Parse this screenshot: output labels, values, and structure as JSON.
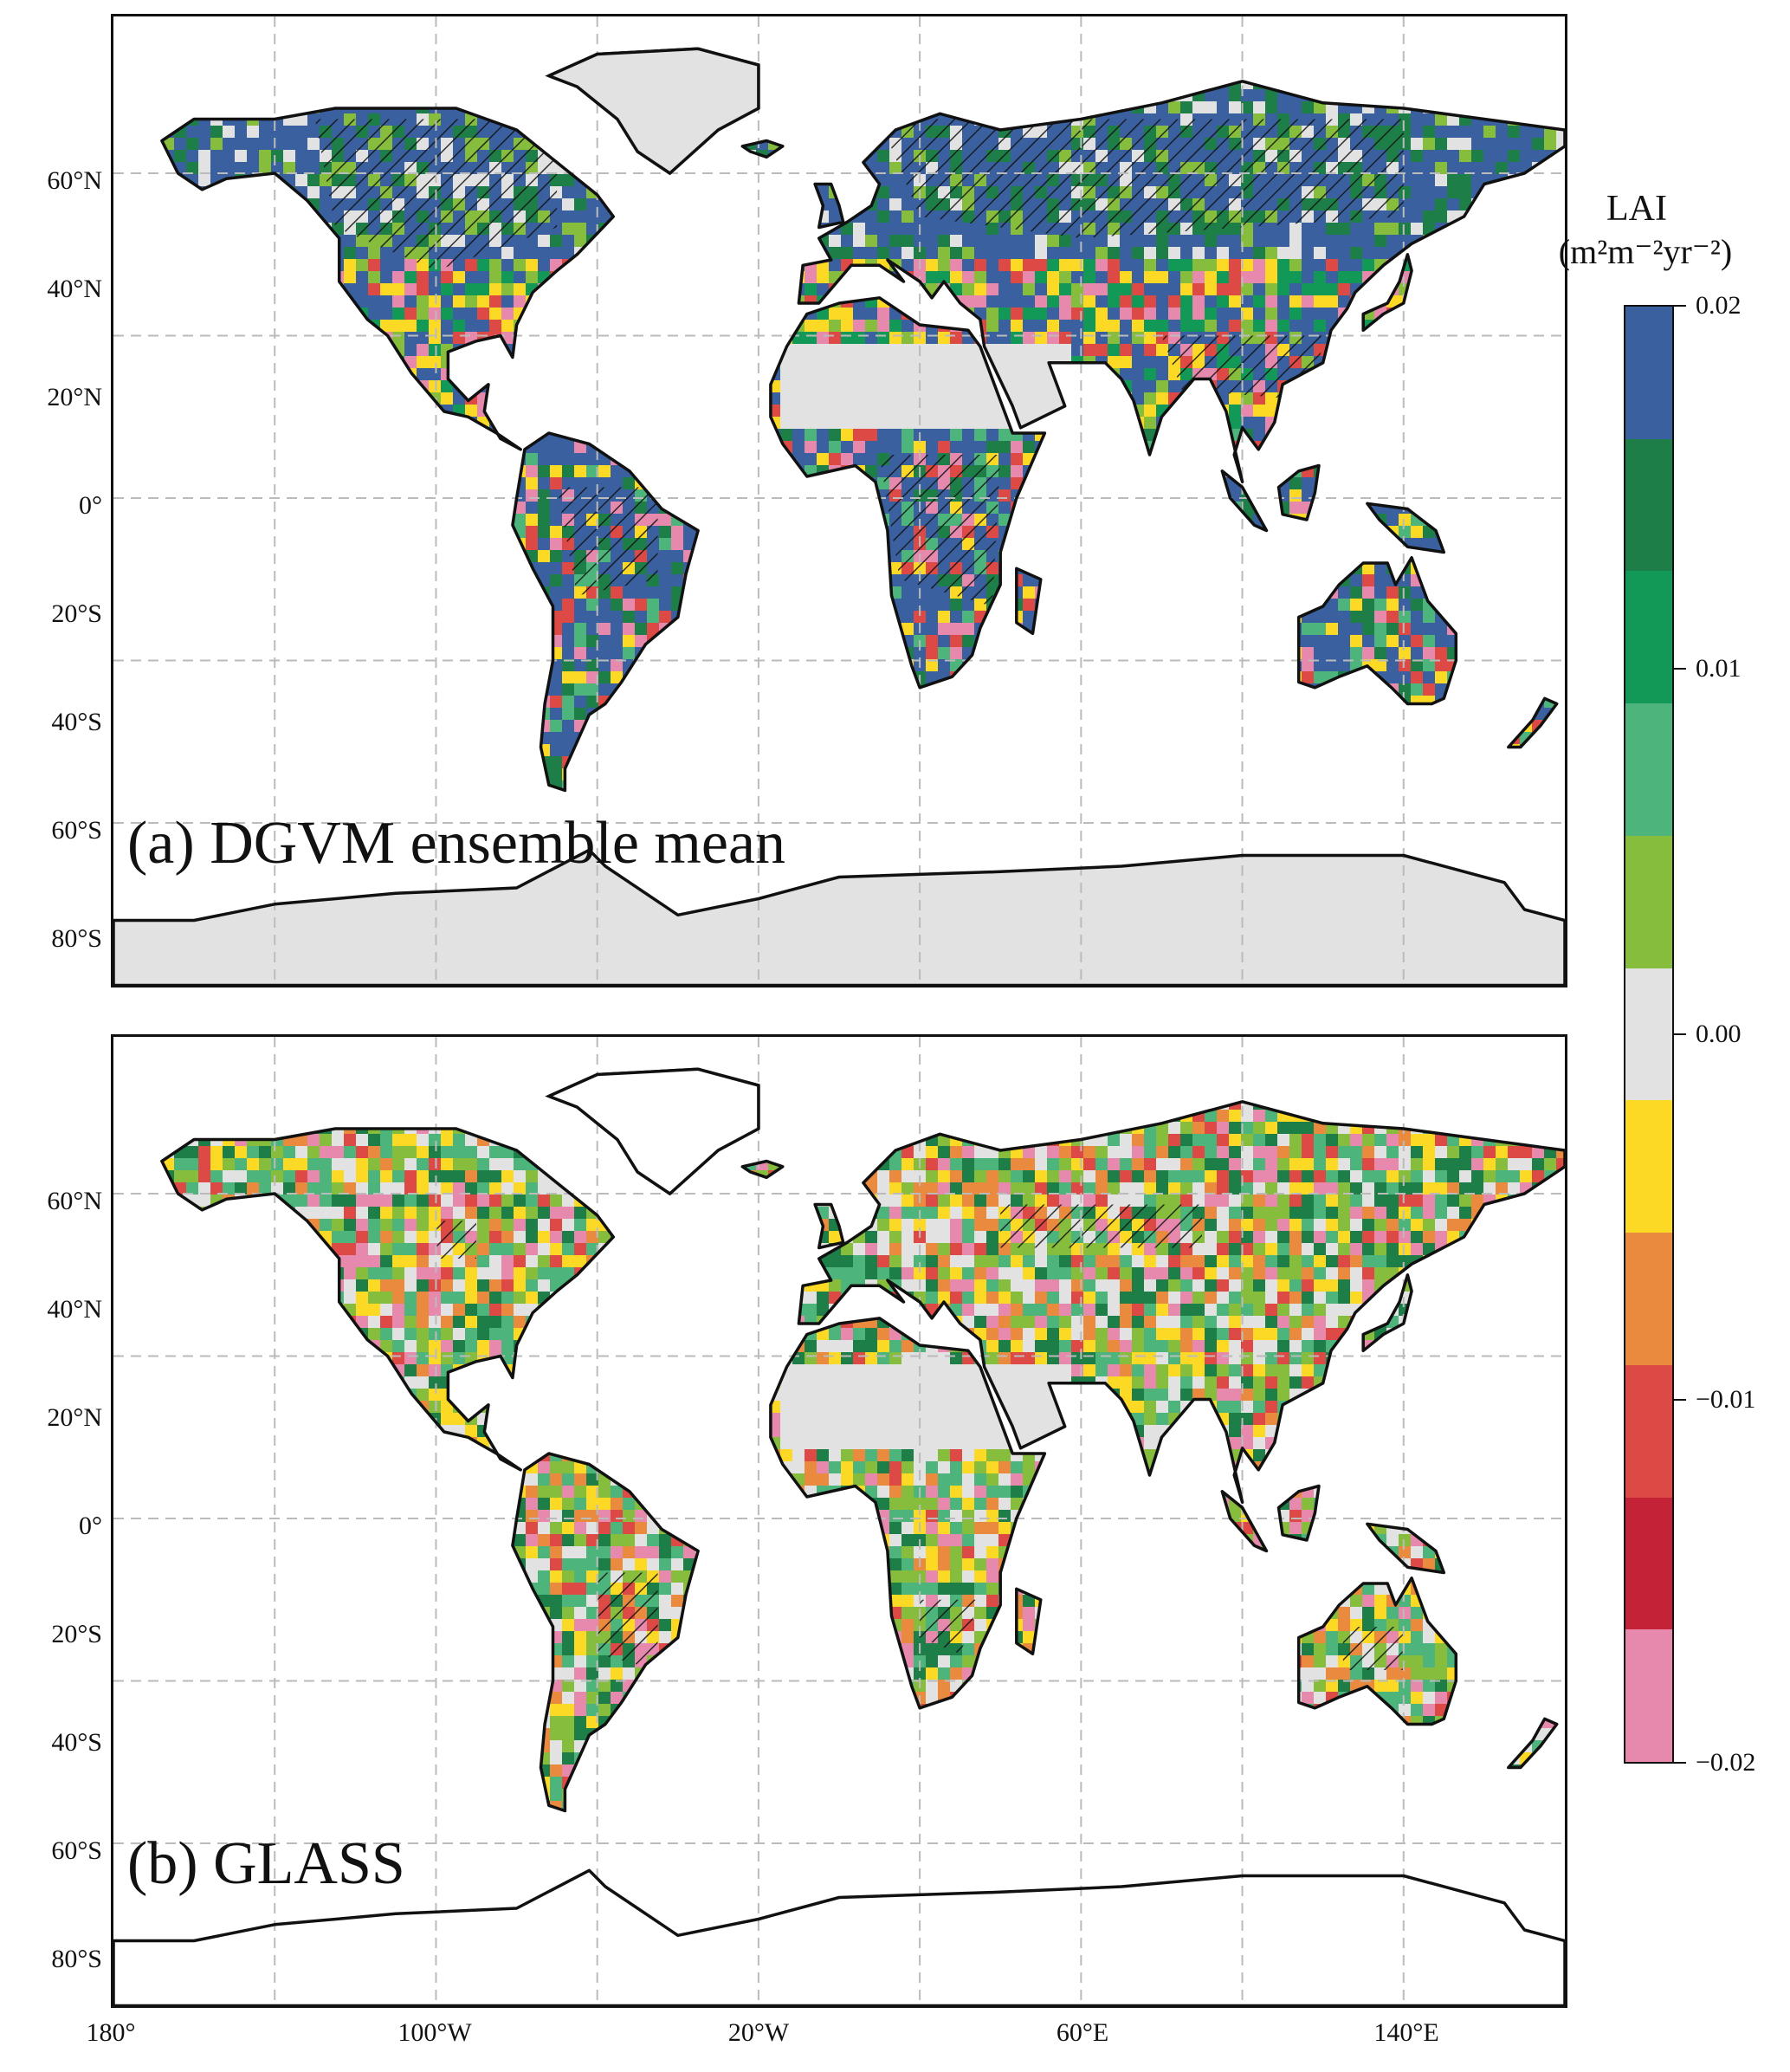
{
  "panels": [
    {
      "label": "(a) DGVM ensemble mean",
      "dataset": "DGVM ensemble mean"
    },
    {
      "label": "(b) GLASS",
      "dataset": "GLASS"
    }
  ],
  "axes": {
    "lat_ticks": [
      "60°N",
      "40°N",
      "20°N",
      "0°",
      "20°S",
      "40°S",
      "60°S",
      "80°S"
    ],
    "lon_ticks": [
      "180°",
      "100°W",
      "20°W",
      "60°E",
      "140°E"
    ]
  },
  "colorbar": {
    "title": "LAI",
    "units": "(m²m⁻²yr⁻²)",
    "ticks": [
      "0.02",
      "0.01",
      "0.00",
      "−0.01",
      "−0.02"
    ],
    "range": [
      -0.02,
      0.02
    ],
    "colors": [
      "#3a60a0",
      "#1e7e48",
      "#139957",
      "#4db57c",
      "#86bd3c",
      "#e2e2e2",
      "#fbd925",
      "#ea8a3f",
      "#dd4a45",
      "#c42236",
      "#e689ad"
    ]
  },
  "chart_data": {
    "type": "heatmap",
    "variable": "LAI trend",
    "units": "m² m⁻² yr⁻²",
    "lon_range": [
      -180,
      180
    ],
    "lat_range": [
      -90,
      90
    ],
    "hatching": "significant trend",
    "legend_placement": "right"
  },
  "icons": {
    "land": "continent-shape",
    "hatch": "diagonal-hatch"
  }
}
